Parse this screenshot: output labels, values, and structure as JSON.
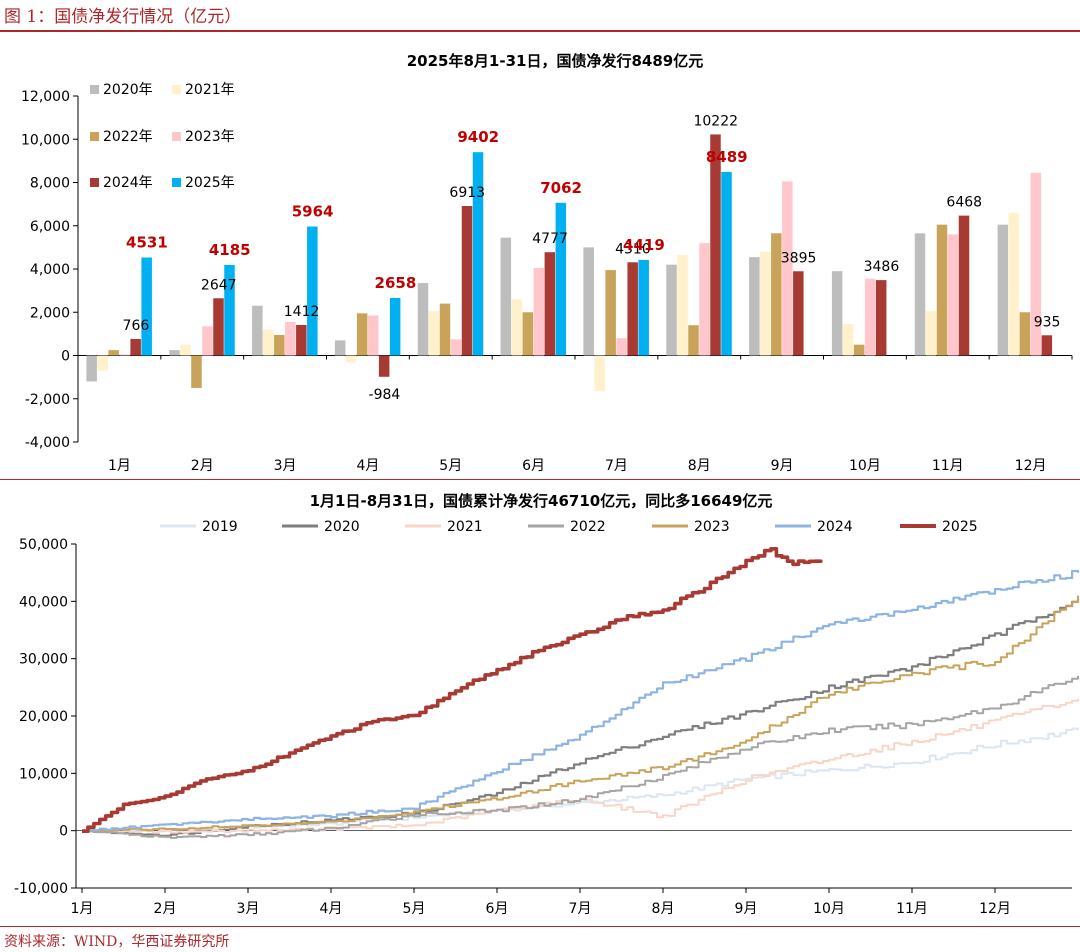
{
  "figure": {
    "title": "图 1：国债净发行情况（亿元）",
    "source": "资料来源：WIND，华西证券研究所"
  },
  "chart_data": [
    {
      "type": "bar",
      "title": "2025年8月1-31日，国债净发行8489亿元",
      "categories": [
        "1月",
        "2月",
        "3月",
        "4月",
        "5月",
        "6月",
        "7月",
        "8月",
        "9月",
        "10月",
        "11月",
        "12月"
      ],
      "ylim": [
        -4000,
        12000
      ],
      "yticks": [
        "-4,000",
        "-2,000",
        "0",
        "2,000",
        "4,000",
        "6,000",
        "8,000",
        "10,000",
        "12,000"
      ],
      "legend_position": "top-left",
      "series": [
        {
          "name": "2020年",
          "color": "#bdbdbd",
          "values": [
            -1200,
            250,
            2300,
            700,
            3350,
            5450,
            5000,
            4200,
            4550,
            3900,
            5650,
            6050
          ]
        },
        {
          "name": "2021年",
          "color": "#fff1cc",
          "values": [
            -700,
            500,
            1200,
            -300,
            2050,
            2600,
            -1650,
            4650,
            4800,
            1450,
            2050,
            6600
          ]
        },
        {
          "name": "2022年",
          "color": "#c9a35a",
          "values": [
            250,
            -1500,
            950,
            1950,
            2400,
            2000,
            3950,
            1400,
            5650,
            500,
            6050,
            2000
          ]
        },
        {
          "name": "2023年",
          "color": "#ffc7cc",
          "values": [
            50,
            1350,
            1550,
            1850,
            750,
            4050,
            800,
            5200,
            8050,
            3550,
            5600,
            8450
          ]
        },
        {
          "name": "2024年",
          "color": "#a73a33",
          "values": [
            766,
            2647,
            1412,
            -984,
            6913,
            4777,
            4310,
            10222,
            3895,
            3486,
            6468,
            935
          ]
        },
        {
          "name": "2025年",
          "color": "#00b0f0",
          "values": [
            4531,
            4185,
            5964,
            2658,
            9402,
            7062,
            4419,
            8489,
            null,
            null,
            null,
            null
          ]
        }
      ],
      "data_labels": {
        "black": [
          {
            "month": 0,
            "series": 4,
            "text": "766"
          },
          {
            "month": 1,
            "series": 4,
            "text": "2647"
          },
          {
            "month": 2,
            "series": 4,
            "text": "1412"
          },
          {
            "month": 3,
            "series": 4,
            "text": "-984"
          },
          {
            "month": 4,
            "series": 4,
            "text": "6913"
          },
          {
            "month": 5,
            "series": 4,
            "text": "4777"
          },
          {
            "month": 6,
            "series": 4,
            "text": "4310"
          },
          {
            "month": 7,
            "series": 4,
            "text": "10222"
          },
          {
            "month": 8,
            "series": 4,
            "text": "3895"
          },
          {
            "month": 9,
            "series": 4,
            "text": "3486"
          },
          {
            "month": 10,
            "series": 4,
            "text": "6468"
          },
          {
            "month": 11,
            "series": 4,
            "text": "935"
          }
        ],
        "red": [
          {
            "month": 0,
            "series": 5,
            "text": "4531"
          },
          {
            "month": 1,
            "series": 5,
            "text": "4185"
          },
          {
            "month": 2,
            "series": 5,
            "text": "5964"
          },
          {
            "month": 3,
            "series": 5,
            "text": "2658"
          },
          {
            "month": 4,
            "series": 5,
            "text": "9402"
          },
          {
            "month": 5,
            "series": 5,
            "text": "7062"
          },
          {
            "month": 6,
            "series": 5,
            "text": "4419"
          },
          {
            "month": 7,
            "series": 5,
            "text": "8489"
          }
        ]
      }
    },
    {
      "type": "line",
      "title": "1月1日-8月31日，国债累计净发行46710亿元，同比多16649亿元",
      "x_ticks": [
        "1月",
        "2月",
        "3月",
        "4月",
        "5月",
        "6月",
        "7月",
        "8月",
        "9月",
        "10月",
        "11月",
        "12月"
      ],
      "ylim": [
        -10000,
        50000
      ],
      "yticks": [
        "-10,000",
        "0",
        "10,000",
        "20,000",
        "30,000",
        "40,000",
        "50,000"
      ],
      "legend_position": "top",
      "series": [
        {
          "name": "2019",
          "color": "#dce6f1",
          "width": 2,
          "points": [
            [
              0,
              0
            ],
            [
              1,
              200
            ],
            [
              2,
              600
            ],
            [
              3,
              1200
            ],
            [
              4,
              2300
            ],
            [
              5,
              3600
            ],
            [
              6,
              4800
            ],
            [
              7,
              6200
            ],
            [
              8,
              9000
            ],
            [
              9,
              10500
            ],
            [
              10,
              12000
            ],
            [
              11,
              15000
            ],
            [
              12,
              17500
            ]
          ]
        },
        {
          "name": "2020",
          "color": "#7f7f7f",
          "width": 2.2,
          "points": [
            [
              0,
              0
            ],
            [
              1,
              -800
            ],
            [
              2,
              800
            ],
            [
              3,
              1800
            ],
            [
              4,
              3000
            ],
            [
              5,
              6500
            ],
            [
              6,
              12000
            ],
            [
              7,
              16500
            ],
            [
              8,
              20500
            ],
            [
              9,
              25000
            ],
            [
              10,
              28500
            ],
            [
              11,
              34000
            ],
            [
              12,
              40500
            ]
          ]
        },
        {
          "name": "2021",
          "color": "#f8d5c8",
          "width": 2,
          "points": [
            [
              0,
              0
            ],
            [
              1,
              -200
            ],
            [
              2,
              0
            ],
            [
              3,
              300
            ],
            [
              4,
              900
            ],
            [
              5,
              3500
            ],
            [
              6,
              5500
            ],
            [
              7,
              2500
            ],
            [
              8,
              9000
            ],
            [
              9,
              12500
            ],
            [
              10,
              15500
            ],
            [
              11,
              19000
            ],
            [
              12,
              23000
            ]
          ]
        },
        {
          "name": "2022",
          "color": "#a5a5a5",
          "width": 2,
          "points": [
            [
              0,
              0
            ],
            [
              1,
              -1200
            ],
            [
              2,
              -700
            ],
            [
              3,
              400
            ],
            [
              4,
              2800
            ],
            [
              5,
              3500
            ],
            [
              6,
              5500
            ],
            [
              7,
              9500
            ],
            [
              8,
              14500
            ],
            [
              9,
              17500
            ],
            [
              10,
              18500
            ],
            [
              11,
              21500
            ],
            [
              12,
              27000
            ]
          ]
        },
        {
          "name": "2023",
          "color": "#c9a35a",
          "width": 2,
          "points": [
            [
              0,
              0
            ],
            [
              1,
              300
            ],
            [
              2,
              800
            ],
            [
              3,
              1500
            ],
            [
              4,
              3300
            ],
            [
              5,
              5700
            ],
            [
              6,
              8700
            ],
            [
              7,
              11000
            ],
            [
              8,
              15500
            ],
            [
              9,
              24000
            ],
            [
              10,
              27500
            ],
            [
              11,
              29500
            ],
            [
              12,
              41000
            ]
          ]
        },
        {
          "name": "2024",
          "color": "#8eb4e3",
          "width": 2.2,
          "points": [
            [
              0,
              0
            ],
            [
              1,
              1000
            ],
            [
              2,
              2000
            ],
            [
              3,
              2600
            ],
            [
              4,
              4000
            ],
            [
              5,
              10500
            ],
            [
              6,
              16500
            ],
            [
              7,
              25500
            ],
            [
              8,
              30000
            ],
            [
              9,
              36000
            ],
            [
              10,
              38500
            ],
            [
              11,
              42000
            ],
            [
              12,
              45000
            ]
          ]
        },
        {
          "name": "2025",
          "color": "#a73a33",
          "width": 3.6,
          "points": [
            [
              0,
              0
            ],
            [
              0.5,
              4500
            ],
            [
              1,
              6000
            ],
            [
              1.5,
              9000
            ],
            [
              2,
              10500
            ],
            [
              2.5,
              13500
            ],
            [
              3,
              16500
            ],
            [
              3.5,
              19000
            ],
            [
              4,
              20000
            ],
            [
              4.5,
              24500
            ],
            [
              5,
              28000
            ],
            [
              5.5,
              31500
            ],
            [
              6,
              34000
            ],
            [
              6.5,
              37000
            ],
            [
              7,
              38500
            ],
            [
              7.5,
              42500
            ],
            [
              8,
              47000
            ],
            [
              8.3,
              49000
            ],
            [
              8.5,
              46710
            ],
            [
              8.9,
              46710
            ]
          ]
        }
      ]
    }
  ]
}
